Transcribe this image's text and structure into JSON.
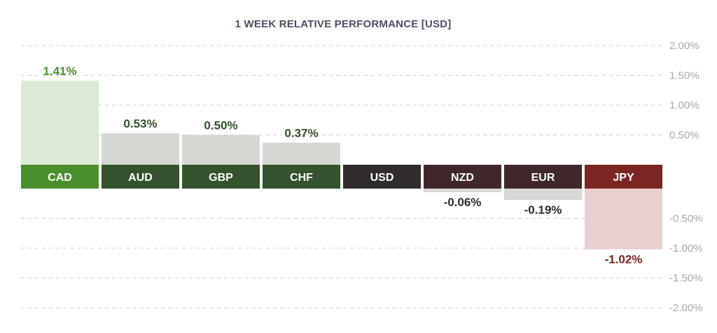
{
  "chart_data": {
    "type": "bar",
    "title": "1 WEEK RELATIVE PERFORMANCE  [USD]",
    "categories": [
      "CAD",
      "AUD",
      "GBP",
      "CHF",
      "USD",
      "NZD",
      "EUR",
      "JPY"
    ],
    "values": [
      1.41,
      0.53,
      0.5,
      0.37,
      0.0,
      -0.06,
      -0.19,
      -1.02
    ],
    "value_labels": [
      "1.41%",
      "0.53%",
      "0.50%",
      "0.37%",
      "",
      "-0.06%",
      "-0.19%",
      "-1.02%"
    ],
    "category_colors": [
      "#4a8f2e",
      "#34522c",
      "#34522c",
      "#34522c",
      "#302c2c",
      "#40282a",
      "#40282a",
      "#7a2622"
    ],
    "bar_colors": [
      "#dbe9d5",
      "#d5d8d2",
      "#d5d8d2",
      "#d5d8d2",
      "#ffffff",
      "#d8d7d6",
      "#d8d7d6",
      "#e8d0d0"
    ],
    "value_label_colors": [
      "#4a8f2e",
      "#34522c",
      "#34522c",
      "#34522c",
      "#302c2c",
      "#302c2c",
      "#302c2c",
      "#7a2622"
    ],
    "yticks_positive": [
      "2.00%",
      "1.50%",
      "1.00%",
      "0.50%"
    ],
    "yticks_negative": [
      "-0.50%",
      "-1.00%",
      "-1.50%",
      "-2.00%"
    ],
    "ylim": [
      -2.0,
      2.0
    ],
    "grid": true,
    "ylabel_position": "right",
    "xlabel": "",
    "ylabel": ""
  }
}
